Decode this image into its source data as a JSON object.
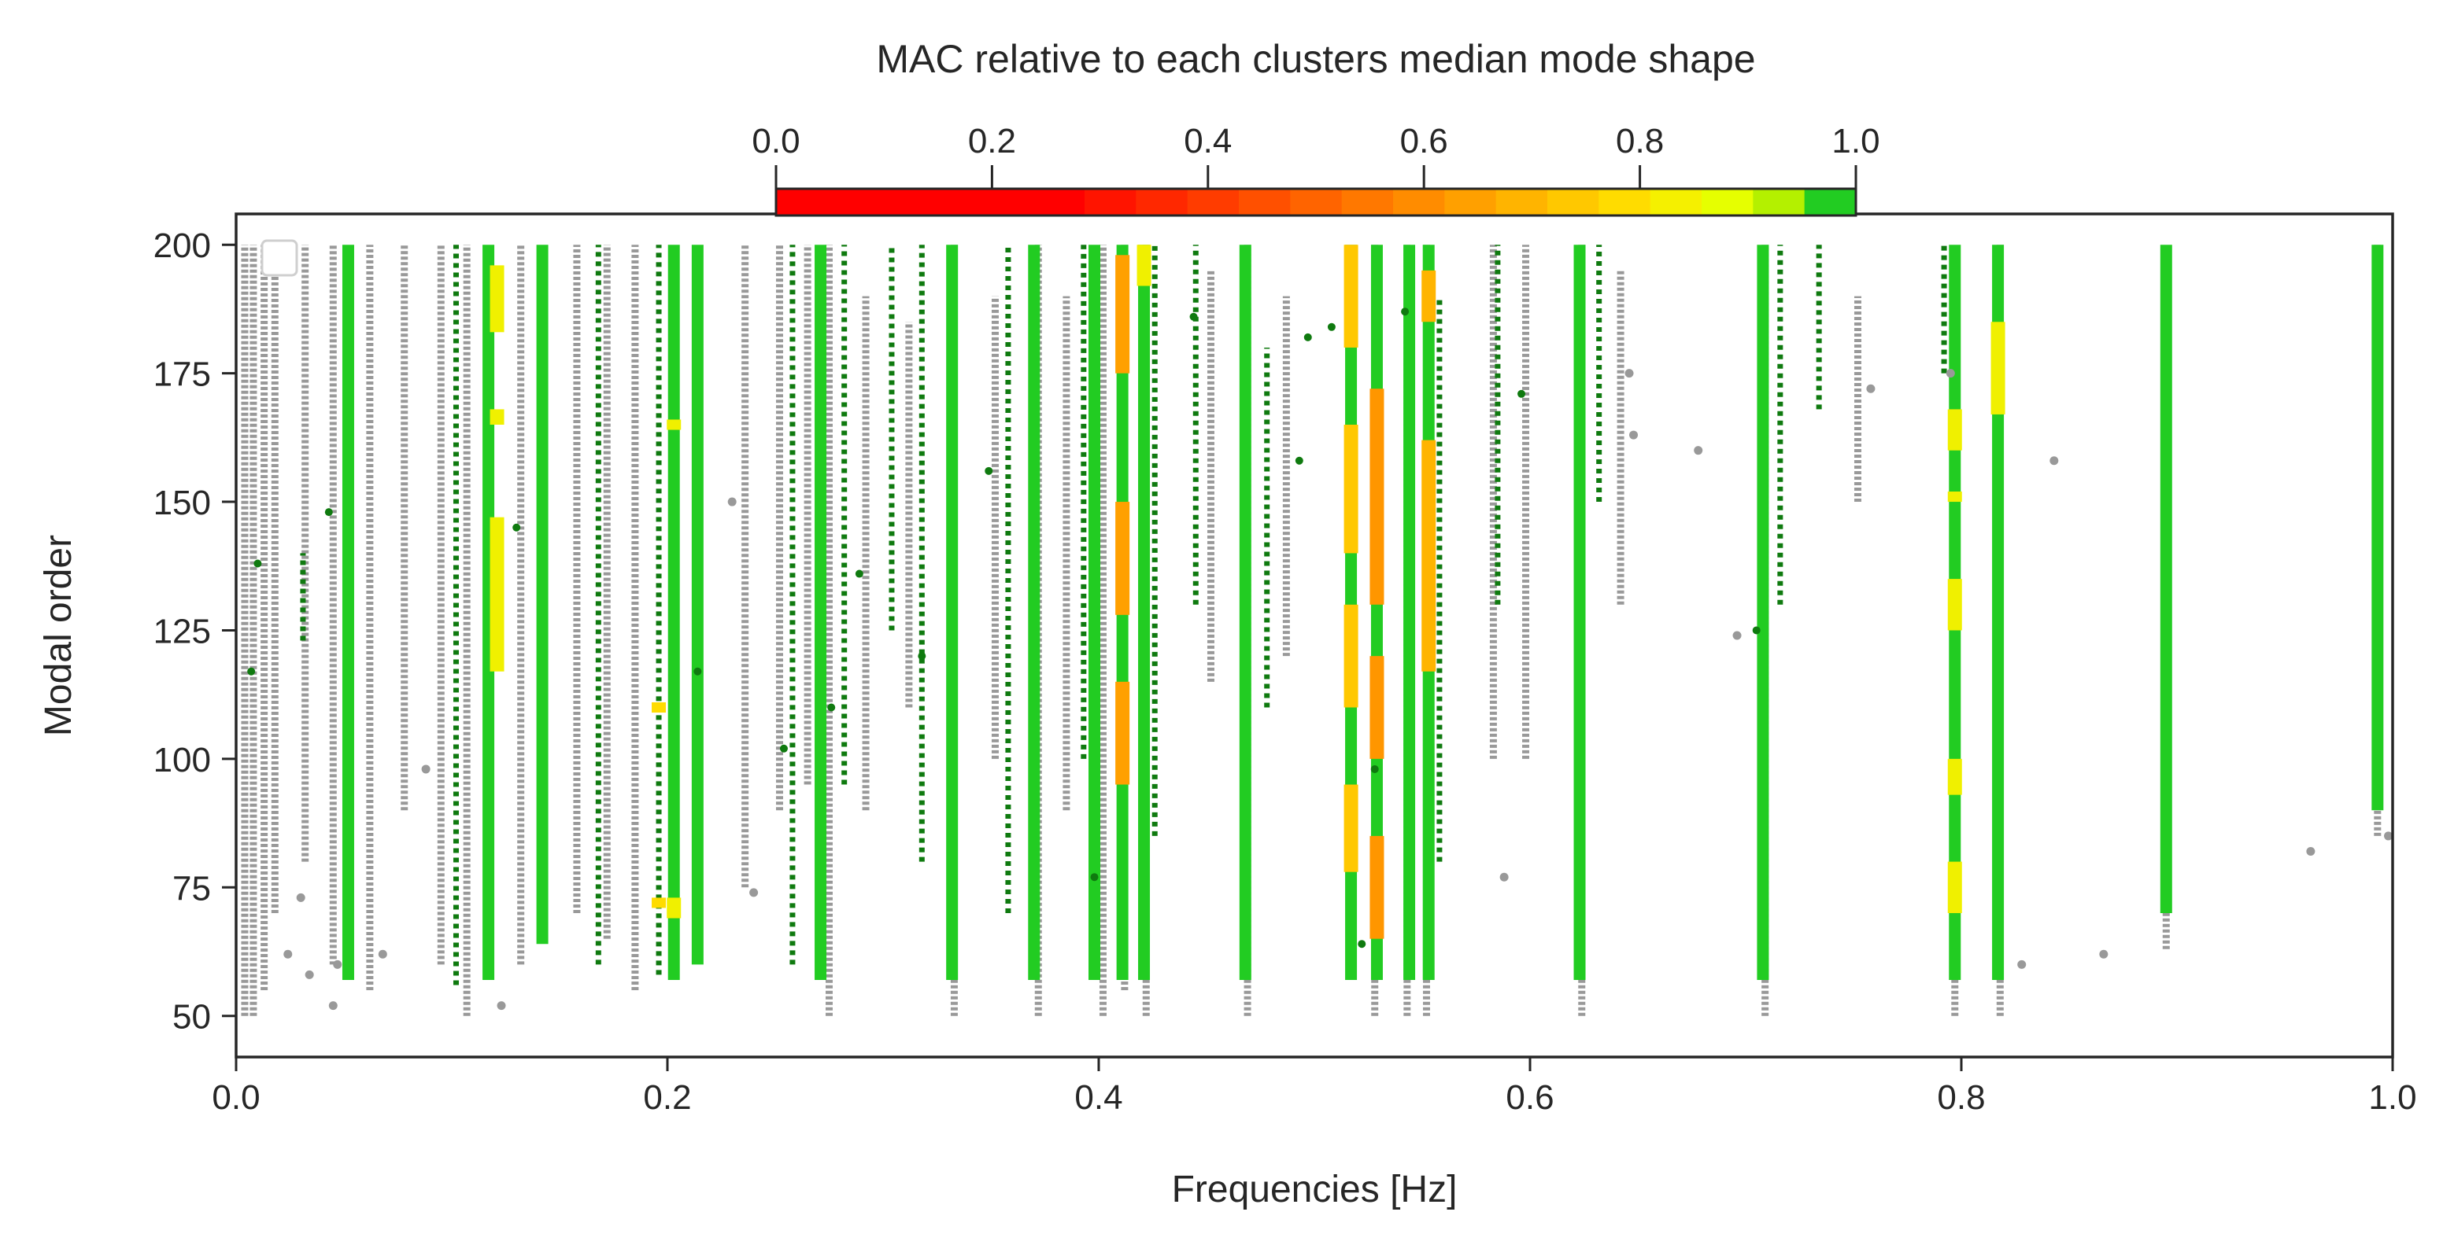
{
  "chart_data": {
    "type": "scatter",
    "title": "",
    "xlabel": "Frequencies [Hz]",
    "ylabel": "Modal order",
    "xlim": [
      0.0,
      1.0
    ],
    "ylim": [
      42,
      206
    ],
    "xticks": [
      0.0,
      0.2,
      0.4,
      0.6,
      0.8,
      1.0
    ],
    "xtick_labels": [
      "0.0",
      "0.2",
      "0.4",
      "0.6",
      "0.8",
      "1.0"
    ],
    "yticks": [
      50,
      75,
      100,
      125,
      150,
      175,
      200
    ],
    "ytick_labels": [
      "50",
      "75",
      "100",
      "125",
      "150",
      "175",
      "200"
    ],
    "grid": false,
    "legend": "top-left (empty box)",
    "colorbar": {
      "label": "MAC relative to each clusters median mode shape",
      "location": "top",
      "range": [
        0.0,
        1.0
      ],
      "ticks": [
        0.0,
        0.2,
        0.4,
        0.6,
        0.8,
        1.0
      ],
      "tick_labels": [
        "0.0",
        "0.2",
        "0.4",
        "0.6",
        "0.8",
        "1.0"
      ],
      "colors": [
        "#ff0000",
        "#ff0000",
        "#ff0000",
        "#ff0000",
        "#ff0000",
        "#ff0000",
        "#ff1400",
        "#ff2800",
        "#ff3c00",
        "#ff5000",
        "#ff6400",
        "#ff7800",
        "#ff8c00",
        "#ffa000",
        "#ffb400",
        "#ffc800",
        "#ffdc00",
        "#f5f000",
        "#e6ff00",
        "#b4f000",
        "#22cc22"
      ]
    },
    "series": [
      {
        "color": "#999999",
        "vertical_traces": [
          [
            0.004,
            50,
            200
          ],
          [
            0.008,
            50,
            200
          ],
          [
            0.013,
            55,
            200
          ],
          [
            0.018,
            70,
            200
          ],
          [
            0.032,
            80,
            200
          ],
          [
            0.045,
            60,
            200
          ],
          [
            0.062,
            55,
            200
          ],
          [
            0.078,
            90,
            200
          ],
          [
            0.095,
            60,
            200
          ],
          [
            0.107,
            50,
            200
          ],
          [
            0.132,
            60,
            200
          ],
          [
            0.158,
            70,
            200
          ],
          [
            0.172,
            65,
            200
          ],
          [
            0.185,
            55,
            200
          ],
          [
            0.236,
            75,
            200
          ],
          [
            0.252,
            90,
            200
          ],
          [
            0.265,
            95,
            200
          ],
          [
            0.275,
            50,
            200
          ],
          [
            0.292,
            90,
            190
          ],
          [
            0.312,
            110,
            185
          ],
          [
            0.333,
            50,
            200
          ],
          [
            0.352,
            100,
            190
          ],
          [
            0.372,
            50,
            200
          ],
          [
            0.385,
            90,
            190
          ],
          [
            0.402,
            50,
            200
          ],
          [
            0.412,
            55,
            200
          ],
          [
            0.422,
            50,
            200
          ],
          [
            0.452,
            115,
            195
          ],
          [
            0.469,
            50,
            200
          ],
          [
            0.487,
            120,
            190
          ],
          [
            0.528,
            50,
            200
          ],
          [
            0.543,
            50,
            200
          ],
          [
            0.552,
            50,
            200
          ],
          [
            0.583,
            100,
            200
          ],
          [
            0.598,
            100,
            200
          ],
          [
            0.624,
            50,
            200
          ],
          [
            0.642,
            130,
            195
          ],
          [
            0.709,
            50,
            200
          ],
          [
            0.752,
            150,
            190
          ],
          [
            0.797,
            50,
            180
          ],
          [
            0.818,
            50,
            200
          ],
          [
            0.895,
            63,
            200
          ],
          [
            0.993,
            85,
            200
          ]
        ],
        "scatter": [
          [
            0.024,
            62
          ],
          [
            0.03,
            73
          ],
          [
            0.034,
            58
          ],
          [
            0.045,
            52
          ],
          [
            0.047,
            60
          ],
          [
            0.068,
            62
          ],
          [
            0.088,
            98
          ],
          [
            0.123,
            52
          ],
          [
            0.23,
            150
          ],
          [
            0.24,
            74
          ],
          [
            0.588,
            77
          ],
          [
            0.646,
            175
          ],
          [
            0.648,
            163
          ],
          [
            0.678,
            160
          ],
          [
            0.696,
            124
          ],
          [
            0.758,
            172
          ],
          [
            0.795,
            175
          ],
          [
            0.843,
            158
          ],
          [
            0.828,
            60
          ],
          [
            0.866,
            62
          ],
          [
            0.962,
            82
          ],
          [
            0.998,
            85
          ]
        ]
      },
      {
        "color": "#0f7a0f",
        "vertical_traces": [
          [
            0.031,
            123,
            140
          ],
          [
            0.102,
            56,
            200
          ],
          [
            0.168,
            60,
            200
          ],
          [
            0.196,
            58,
            200
          ],
          [
            0.258,
            60,
            200
          ],
          [
            0.282,
            95,
            200
          ],
          [
            0.304,
            125,
            200
          ],
          [
            0.318,
            80,
            200
          ],
          [
            0.358,
            70,
            200
          ],
          [
            0.393,
            100,
            200
          ],
          [
            0.426,
            85,
            200
          ],
          [
            0.445,
            130,
            200
          ],
          [
            0.468,
            60,
            190
          ],
          [
            0.478,
            110,
            180
          ],
          [
            0.558,
            80,
            190
          ],
          [
            0.585,
            130,
            200
          ],
          [
            0.632,
            150,
            200
          ],
          [
            0.716,
            130,
            200
          ],
          [
            0.734,
            168,
            200
          ],
          [
            0.792,
            175,
            200
          ]
        ],
        "scatter": [
          [
            0.007,
            117
          ],
          [
            0.01,
            138
          ],
          [
            0.043,
            148
          ],
          [
            0.13,
            145
          ],
          [
            0.214,
            117
          ],
          [
            0.254,
            102
          ],
          [
            0.276,
            110
          ],
          [
            0.289,
            136
          ],
          [
            0.318,
            120
          ],
          [
            0.349,
            156
          ],
          [
            0.398,
            77
          ],
          [
            0.444,
            186
          ],
          [
            0.493,
            158
          ],
          [
            0.497,
            182
          ],
          [
            0.508,
            184
          ],
          [
            0.522,
            64
          ],
          [
            0.528,
            98
          ],
          [
            0.542,
            187
          ],
          [
            0.596,
            171
          ],
          [
            0.705,
            125
          ]
        ]
      },
      {
        "color": "#22cc22",
        "vertical_traces": [
          [
            0.052,
            57,
            200
          ],
          [
            0.117,
            57,
            200
          ],
          [
            0.142,
            64,
            200
          ],
          [
            0.203,
            57,
            200
          ],
          [
            0.214,
            60,
            200
          ],
          [
            0.271,
            57,
            200
          ],
          [
            0.332,
            57,
            200
          ],
          [
            0.37,
            57,
            200
          ],
          [
            0.398,
            57,
            200
          ],
          [
            0.411,
            57,
            200
          ],
          [
            0.421,
            57,
            200
          ],
          [
            0.468,
            57,
            200
          ],
          [
            0.517,
            57,
            200
          ],
          [
            0.529,
            57,
            200
          ],
          [
            0.544,
            57,
            200
          ],
          [
            0.553,
            57,
            200
          ],
          [
            0.623,
            57,
            200
          ],
          [
            0.708,
            57,
            200
          ],
          [
            0.797,
            57,
            200
          ],
          [
            0.817,
            57,
            200
          ],
          [
            0.895,
            70,
            200
          ],
          [
            0.993,
            90,
            200
          ]
        ],
        "scatter": []
      }
    ],
    "highlight_segments": [
      {
        "x": 0.121,
        "ranges": [
          [
            117,
            147
          ],
          [
            165,
            168
          ],
          [
            183,
            196
          ]
        ],
        "color": "#f0f000"
      },
      {
        "x": 0.203,
        "ranges": [
          [
            164,
            166
          ],
          [
            69,
            73
          ]
        ],
        "color": "#f0f000"
      },
      {
        "x": 0.196,
        "ranges": [
          [
            109,
            111
          ],
          [
            71,
            73
          ]
        ],
        "color": "#ffdc00"
      },
      {
        "x": 0.411,
        "ranges": [
          [
            95,
            115
          ],
          [
            128,
            150
          ],
          [
            175,
            198
          ]
        ],
        "color": "#ffa000"
      },
      {
        "x": 0.421,
        "ranges": [
          [
            192,
            200
          ]
        ],
        "color": "#f0f000"
      },
      {
        "x": 0.517,
        "ranges": [
          [
            78,
            95
          ],
          [
            110,
            130
          ],
          [
            140,
            165
          ],
          [
            180,
            200
          ]
        ],
        "color": "#ffc800"
      },
      {
        "x": 0.529,
        "ranges": [
          [
            65,
            85
          ],
          [
            100,
            120
          ],
          [
            130,
            172
          ]
        ],
        "color": "#ff9600"
      },
      {
        "x": 0.553,
        "ranges": [
          [
            117,
            162
          ],
          [
            185,
            195
          ]
        ],
        "color": "#ffb400"
      },
      {
        "x": 0.797,
        "ranges": [
          [
            70,
            80
          ],
          [
            93,
            100
          ],
          [
            125,
            135
          ],
          [
            150,
            152
          ],
          [
            160,
            168
          ]
        ],
        "color": "#f0f000"
      },
      {
        "x": 0.817,
        "ranges": [
          [
            167,
            185
          ]
        ],
        "color": "#f0f000"
      }
    ]
  }
}
